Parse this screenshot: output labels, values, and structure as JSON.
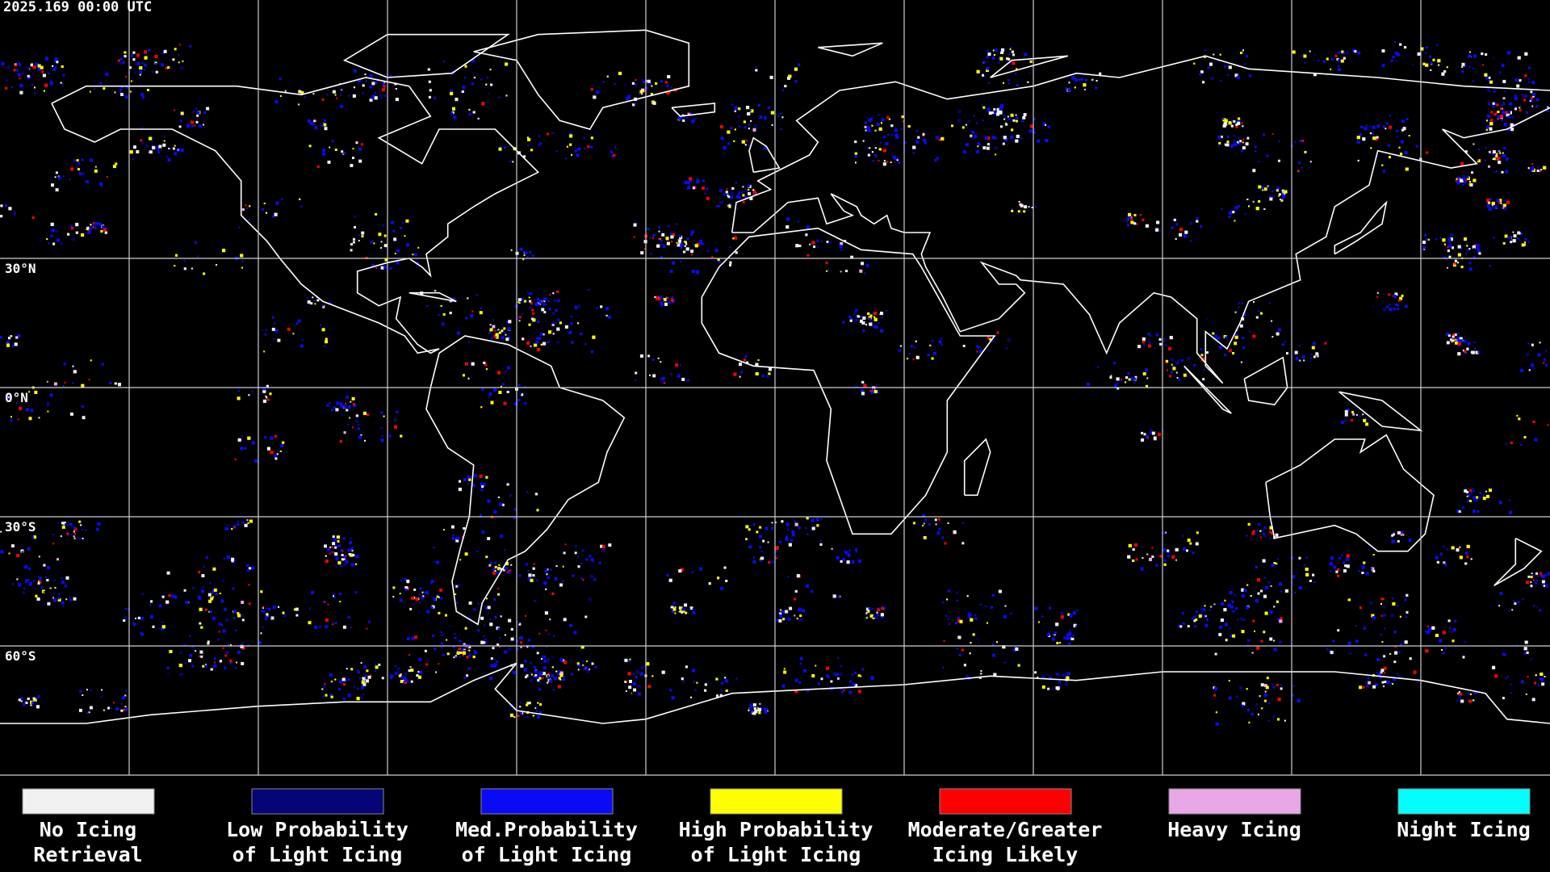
{
  "header": {
    "title": "2025.169 00:00 UTC"
  },
  "lat_labels": [
    {
      "value": 30,
      "label": "30°N"
    },
    {
      "value": 0,
      "label": "0°N"
    },
    {
      "value": -30,
      "label": "30°S"
    },
    {
      "value": -60,
      "label": "60°S"
    }
  ],
  "legend": [
    {
      "color": "#f0f0f0",
      "lines": [
        "No Icing",
        "Retrieval"
      ]
    },
    {
      "color": "#050578",
      "lines": [
        "Low Probability",
        "of Light Icing"
      ]
    },
    {
      "color": "#0a0af5",
      "lines": [
        "Med.Probability",
        "of Light Icing"
      ]
    },
    {
      "color": "#ffff00",
      "lines": [
        "High Probability",
        "of Light Icing"
      ]
    },
    {
      "color": "#ff0000",
      "lines": [
        "Moderate/Greater",
        "Icing Likely"
      ]
    },
    {
      "color": "#e8a8e8",
      "lines": [
        "Heavy Icing"
      ]
    },
    {
      "color": "#00ffff",
      "lines": [
        "Night Icing"
      ]
    }
  ]
}
